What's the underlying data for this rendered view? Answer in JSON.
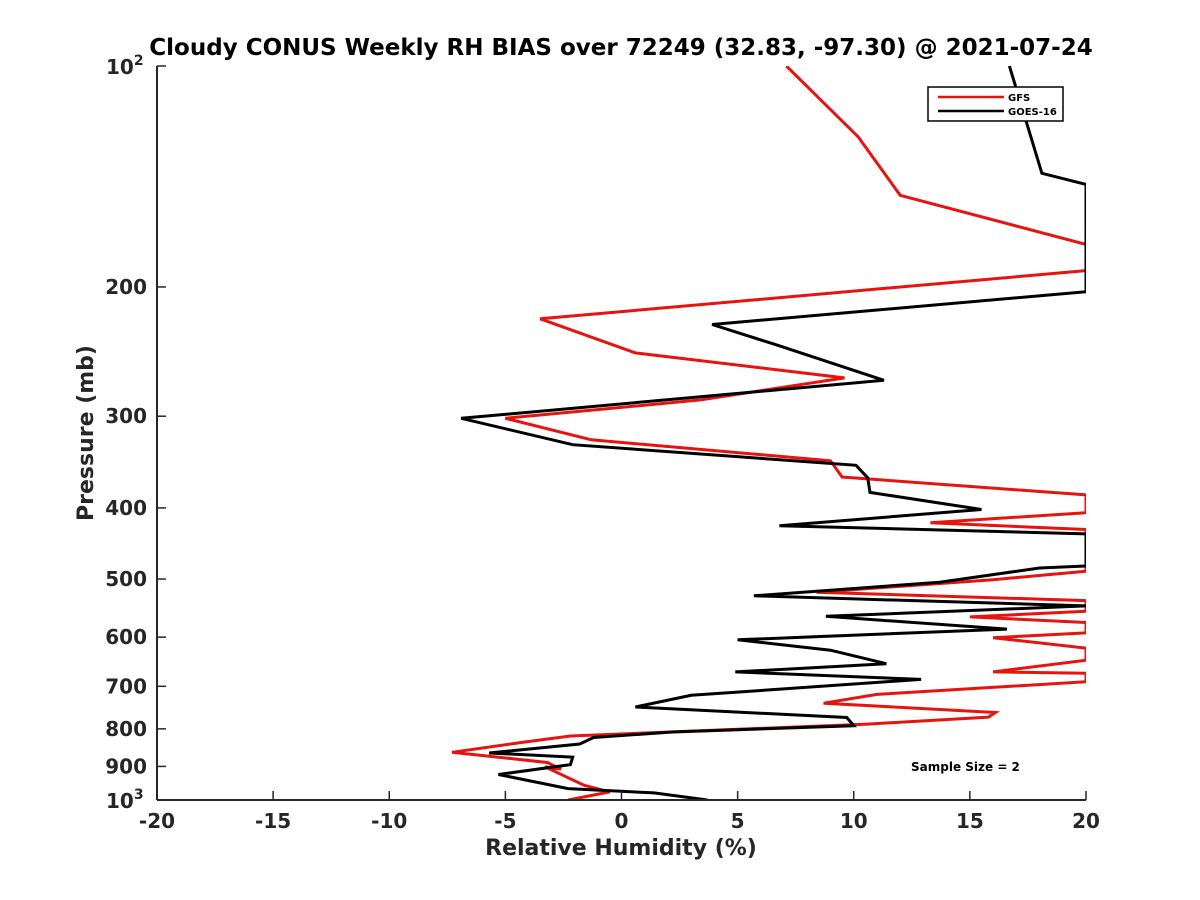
{
  "chart_data": {
    "type": "line",
    "title": "Cloudy CONUS Weekly RH BIAS over 72249 (32.83, -97.30) @ 2021-07-24",
    "xlabel": "Relative Humidity (%)",
    "ylabel": "Pressure (mb)",
    "xlim": [
      -20,
      20
    ],
    "ylim": [
      100,
      1000
    ],
    "y_scale": "log",
    "y_reversed": true,
    "grid": false,
    "legend_position": "top-right",
    "x_ticks": [
      -20,
      -15,
      -10,
      -5,
      0,
      5,
      10,
      15,
      20
    ],
    "x_tick_labels": [
      "-20",
      "-15",
      "-10",
      "-5",
      "0",
      "5",
      "10",
      "15",
      "20"
    ],
    "y_ticks": [
      100,
      200,
      300,
      400,
      500,
      600,
      700,
      800,
      900,
      1000
    ],
    "y_tick_labels": [
      {
        "base": "10",
        "exp": "2"
      },
      {
        "base": "200",
        "exp": ""
      },
      {
        "base": "300",
        "exp": ""
      },
      {
        "base": "400",
        "exp": ""
      },
      {
        "base": "500",
        "exp": ""
      },
      {
        "base": "600",
        "exp": ""
      },
      {
        "base": "700",
        "exp": ""
      },
      {
        "base": "800",
        "exp": ""
      },
      {
        "base": "900",
        "exp": ""
      },
      {
        "base": "10",
        "exp": "3"
      }
    ],
    "series": [
      {
        "name": "GFS",
        "color": "#e8130f",
        "points": [
          [
            7.1,
            100
          ],
          [
            10.2,
            125
          ],
          [
            12.0,
            150
          ],
          [
            20,
            175
          ],
          [
            20,
            190
          ],
          [
            -3.5,
            221
          ],
          [
            0.6,
            246
          ],
          [
            9.6,
            266
          ],
          [
            3.4,
            285
          ],
          [
            -5.0,
            302
          ],
          [
            -1.3,
            323
          ],
          [
            9.0,
            345
          ],
          [
            9.5,
            363
          ],
          [
            20,
            384
          ],
          [
            20,
            406
          ],
          [
            13.3,
            419
          ],
          [
            20,
            428
          ],
          [
            20,
            488
          ],
          [
            16.0,
            501
          ],
          [
            8.4,
            521
          ],
          [
            20,
            535
          ],
          [
            20,
            553
          ],
          [
            15.0,
            563
          ],
          [
            20,
            573
          ],
          [
            20,
            592
          ],
          [
            16.0,
            601
          ],
          [
            20,
            621
          ],
          [
            20,
            645
          ],
          [
            16.0,
            669
          ],
          [
            20,
            672
          ],
          [
            20,
            690
          ],
          [
            11.0,
            718
          ],
          [
            8.7,
            738
          ],
          [
            16.1,
            760
          ],
          [
            15.8,
            771
          ],
          [
            10.6,
            788
          ],
          [
            -2.2,
            818
          ],
          [
            -4.2,
            834
          ],
          [
            -7.3,
            861
          ],
          [
            -3.2,
            889
          ],
          [
            -2.6,
            908
          ],
          [
            -3.3,
            901
          ],
          [
            -1.6,
            955
          ],
          [
            -0.5,
            975
          ],
          [
            -2.3,
            1000
          ]
        ]
      },
      {
        "name": "GOES-16",
        "color": "#000000",
        "points": [
          [
            16.7,
            100
          ],
          [
            18.1,
            140
          ],
          [
            20,
            145
          ],
          [
            20,
            203
          ],
          [
            3.9,
            225
          ],
          [
            6.7,
            240
          ],
          [
            11.3,
            268
          ],
          [
            -6.9,
            302
          ],
          [
            -2.1,
            328
          ],
          [
            10.1,
            350
          ],
          [
            10.6,
            364
          ],
          [
            10.7,
            381
          ],
          [
            15.5,
            402
          ],
          [
            6.8,
            423
          ],
          [
            20,
            434
          ],
          [
            20,
            480
          ],
          [
            18.0,
            483
          ],
          [
            13.7,
            505
          ],
          [
            5.7,
            527
          ],
          [
            20,
            544
          ],
          [
            8.8,
            562
          ],
          [
            16.6,
            585
          ],
          [
            5.0,
            605
          ],
          [
            9.0,
            625
          ],
          [
            11.4,
            652
          ],
          [
            4.9,
            669
          ],
          [
            12.9,
            685
          ],
          [
            3.0,
            720
          ],
          [
            0.6,
            747
          ],
          [
            9.7,
            772
          ],
          [
            10.0,
            792
          ],
          [
            2.2,
            808
          ],
          [
            -1.2,
            822
          ],
          [
            -1.8,
            839
          ],
          [
            -5.7,
            863
          ],
          [
            -2.1,
            874
          ],
          [
            -2.2,
            895
          ],
          [
            -5.3,
            923
          ],
          [
            -2.3,
            965
          ],
          [
            1.4,
            978
          ],
          [
            3.7,
            1000
          ]
        ]
      }
    ],
    "annotations": [
      "Sample Size = 2"
    ]
  }
}
